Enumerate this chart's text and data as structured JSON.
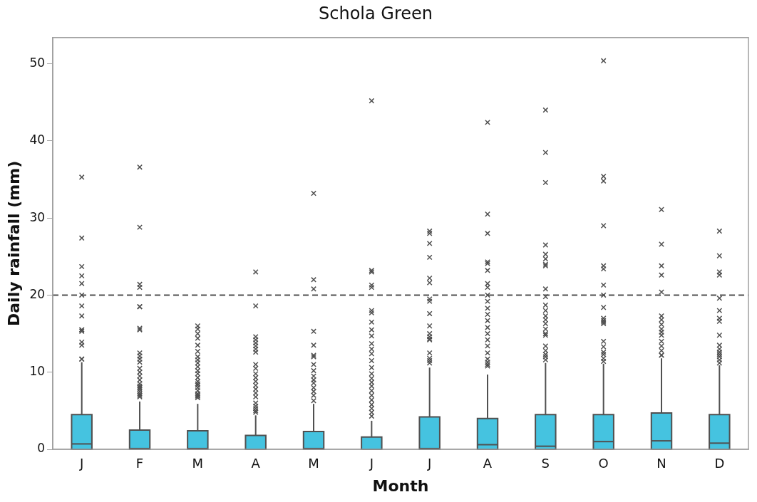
{
  "chart_data": {
    "type": "box",
    "title": "Schola Green",
    "xlabel": "Month",
    "ylabel": "Daily rainfall (mm)",
    "categories": [
      "J",
      "F",
      "M",
      "A",
      "M",
      "J",
      "J",
      "A",
      "S",
      "O",
      "N",
      "D"
    ],
    "ylim": [
      0,
      53.4
    ],
    "yticks": [
      0,
      10,
      20,
      30,
      40,
      50
    ],
    "grid": false,
    "legend": false,
    "marker": "cross",
    "ref_lines": [
      {
        "axis": "y",
        "value": 20,
        "line_style": "dashed"
      }
    ],
    "series": [
      {
        "color": "#45c3e0",
        "boxes": [
          {
            "low": 0,
            "q1": 0,
            "median": 0.7,
            "q3": 4.5,
            "high": 11.3,
            "outliers": [
              11.7,
              11.7,
              13.5,
              13.9,
              15.3,
              15.5,
              15.5,
              17.3,
              18.6,
              20.0,
              21.5,
              22.5,
              23.7,
              27.4,
              35.3
            ]
          },
          {
            "low": 0,
            "q1": 0,
            "median": 0.1,
            "q3": 2.5,
            "high": 6.2,
            "outliers": [
              6.8,
              7.0,
              7.2,
              7.5,
              7.8,
              8.0,
              8.2,
              8.5,
              9.0,
              9.5,
              10.0,
              10.5,
              11.3,
              11.7,
              12.1,
              12.5,
              15.5,
              15.7,
              18.5,
              18.5,
              21.0,
              21.4,
              28.8,
              36.6
            ]
          },
          {
            "low": 0,
            "q1": 0,
            "median": 0.1,
            "q3": 2.4,
            "high": 5.9,
            "outliers": [
              6.7,
              6.9,
              7.0,
              7.2,
              7.6,
              8.0,
              8.3,
              8.5,
              8.8,
              9.3,
              9.8,
              10.2,
              10.7,
              11.2,
              11.6,
              12.0,
              12.7,
              13.5,
              14.4,
              15.0,
              15.6,
              16.0
            ]
          },
          {
            "low": 0,
            "q1": 0,
            "median": 0,
            "q3": 1.8,
            "high": 4.4,
            "outliers": [
              4.8,
              5.0,
              5.3,
              5.6,
              6.0,
              6.8,
              7.3,
              7.8,
              8.3,
              8.8,
              9.3,
              9.8,
              10.5,
              11.0,
              12.6,
              13.0,
              13.4,
              13.8,
              14.2,
              14.6,
              18.6,
              23.0
            ]
          },
          {
            "low": 0,
            "q1": 0,
            "median": 0.1,
            "q3": 2.3,
            "high": 5.9,
            "outliers": [
              6.3,
              7.0,
              7.5,
              8.0,
              8.6,
              9.0,
              9.5,
              10.2,
              11.0,
              12.0,
              12.2,
              13.5,
              15.3,
              20.8,
              22.0,
              33.2
            ]
          },
          {
            "low": 0,
            "q1": 0,
            "median": 0,
            "q3": 1.6,
            "high": 3.7,
            "outliers": [
              4.3,
              4.8,
              5.3,
              5.8,
              6.4,
              7.0,
              7.6,
              8.2,
              8.7,
              9.2,
              9.8,
              10.6,
              11.5,
              12.4,
              13.0,
              13.7,
              14.7,
              15.5,
              16.5,
              17.7,
              18.0,
              21.0,
              21.3,
              23.0,
              23.2,
              45.2
            ]
          },
          {
            "low": 0,
            "q1": 0,
            "median": 0.1,
            "q3": 4.2,
            "high": 10.6,
            "outliers": [
              11.2,
              11.5,
              11.8,
              12.5,
              14.2,
              14.3,
              14.6,
              15.0,
              16.0,
              17.6,
              19.2,
              19.5,
              21.6,
              22.2,
              24.9,
              26.7,
              28.0,
              28.3
            ]
          },
          {
            "low": 0,
            "q1": 0,
            "median": 0.6,
            "q3": 4.0,
            "high": 9.7,
            "outliers": [
              10.8,
              11.0,
              11.3,
              11.7,
              12.5,
              13.4,
              14.2,
              15.0,
              15.8,
              16.7,
              17.5,
              18.3,
              19.2,
              20.0,
              21.0,
              21.5,
              23.2,
              24.1,
              24.3,
              28.0,
              30.5,
              42.4
            ]
          },
          {
            "low": 0,
            "q1": 0,
            "median": 0.4,
            "q3": 4.5,
            "high": 11.2,
            "outliers": [
              11.6,
              12.0,
              12.3,
              12.8,
              13.4,
              14.8,
              15.0,
              15.6,
              16.3,
              16.8,
              17.3,
              18.0,
              18.7,
              19.8,
              20.8,
              23.8,
              24.0,
              24.7,
              25.3,
              26.5,
              34.6,
              38.5,
              44.0
            ]
          },
          {
            "low": 0,
            "q1": 0,
            "median": 1.0,
            "q3": 4.5,
            "high": 11.1,
            "outliers": [
              11.4,
              11.8,
              12.3,
              12.6,
              13.3,
              14.0,
              16.3,
              16.5,
              16.7,
              17.0,
              18.4,
              20.0,
              21.3,
              23.4,
              23.8,
              29.0,
              34.8,
              35.4,
              50.4
            ]
          },
          {
            "low": 0,
            "q1": 0,
            "median": 1.1,
            "q3": 4.7,
            "high": 11.8,
            "outliers": [
              12.2,
              12.2,
              12.8,
              13.4,
              14.0,
              14.8,
              15.2,
              15.6,
              16.2,
              16.8,
              17.3,
              20.4,
              22.6,
              23.8,
              26.6,
              31.1
            ]
          },
          {
            "low": 0,
            "q1": 0,
            "median": 0.8,
            "q3": 4.5,
            "high": 10.9,
            "outliers": [
              11.2,
              11.6,
              12.0,
              12.3,
              12.6,
              13.0,
              13.5,
              14.8,
              16.6,
              17.0,
              18.0,
              19.6,
              22.6,
              23.0,
              25.1,
              28.3
            ]
          }
        ]
      }
    ]
  }
}
